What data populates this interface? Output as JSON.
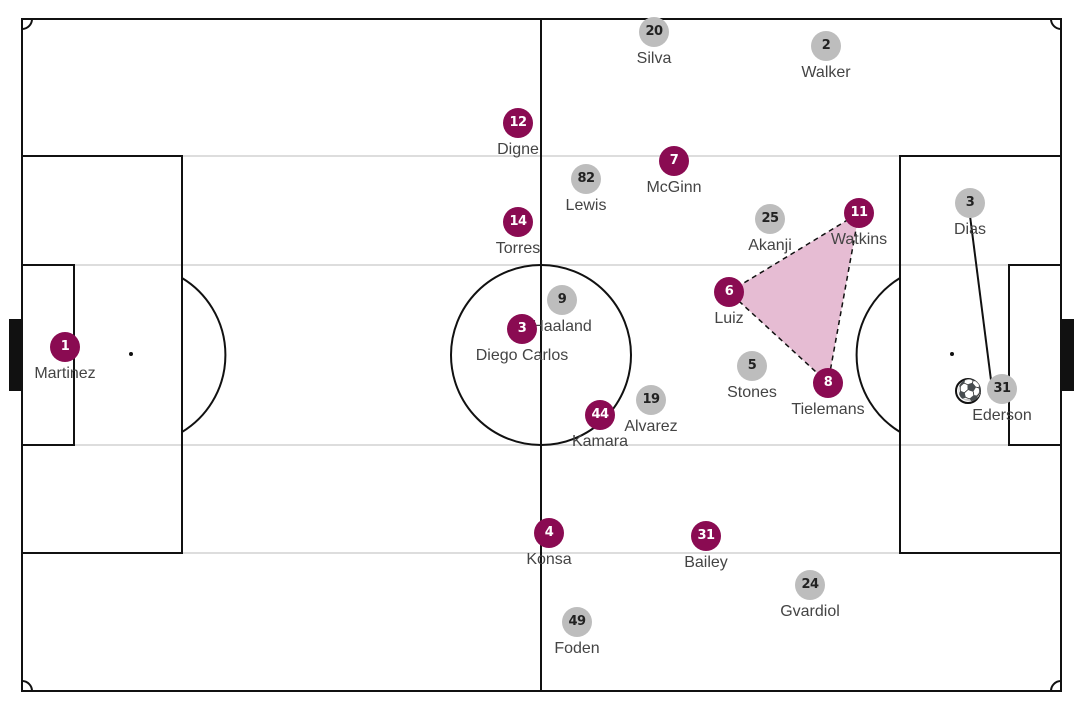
{
  "colors": {
    "home_team": "#8a0b52",
    "away_team": "#bdbdbd",
    "shape_fill": "#e6bcd3",
    "lines": "#111111",
    "thirds": "#dddddd"
  },
  "home_players": [
    {
      "number": "1",
      "name": "Martinez"
    },
    {
      "number": "12",
      "name": "Digne"
    },
    {
      "number": "14",
      "name": "Torres"
    },
    {
      "number": "3",
      "name": "Diego Carlos"
    },
    {
      "number": "44",
      "name": "Kamara"
    },
    {
      "number": "4",
      "name": "Konsa"
    },
    {
      "number": "7",
      "name": "McGinn"
    },
    {
      "number": "6",
      "name": "Luiz"
    },
    {
      "number": "11",
      "name": "Watkins"
    },
    {
      "number": "8",
      "name": "Tielemans"
    },
    {
      "number": "31",
      "name": "Bailey"
    }
  ],
  "away_players": [
    {
      "number": "20",
      "name": "Silva"
    },
    {
      "number": "2",
      "name": "Walker"
    },
    {
      "number": "82",
      "name": "Lewis"
    },
    {
      "number": "25",
      "name": "Akanji"
    },
    {
      "number": "3",
      "name": "Dias"
    },
    {
      "number": "9",
      "name": "Haaland"
    },
    {
      "number": "19",
      "name": "Alvarez"
    },
    {
      "number": "5",
      "name": "Stones"
    },
    {
      "number": "31",
      "name": "Ederson"
    },
    {
      "number": "24",
      "name": "Gvardiol"
    },
    {
      "number": "49",
      "name": "Foden"
    }
  ],
  "ball_icon": "soccer-ball-icon"
}
